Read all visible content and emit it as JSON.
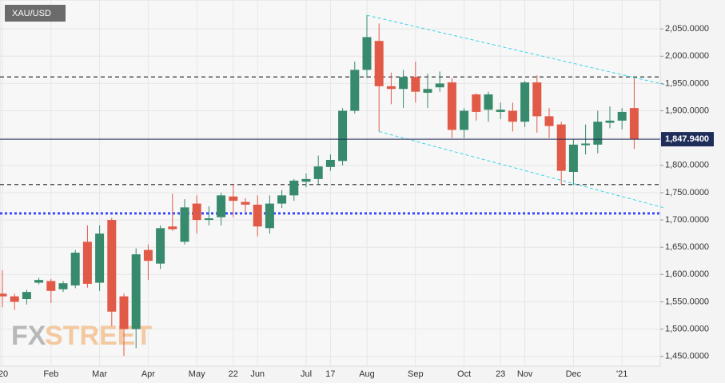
{
  "chart_data": {
    "type": "candlestick",
    "title": "XAU/USD",
    "watermark": [
      "FX",
      "STREET"
    ],
    "categories": [
      "'20",
      null,
      null,
      null,
      "Feb",
      null,
      null,
      null,
      "Mar",
      null,
      null,
      null,
      "Apr",
      null,
      null,
      null,
      "May",
      null,
      null,
      "22",
      null,
      "Jun",
      null,
      null,
      null,
      "Jul",
      null,
      "17",
      null,
      null,
      "Aug",
      null,
      null,
      null,
      "Sep",
      null,
      null,
      null,
      "Oct",
      null,
      null,
      "23",
      null,
      "Nov",
      null,
      null,
      null,
      "Dec",
      null,
      null,
      null,
      "'21",
      null
    ],
    "open": [
      1565,
      1560,
      1555,
      1585,
      1588,
      1573,
      1580,
      1660,
      1585,
      1700,
      1560,
      1500,
      1645,
      1620,
      1688,
      1660,
      1730,
      1700,
      1705,
      1743,
      1733,
      1728,
      1685,
      1730,
      1745,
      1770,
      1775,
      1797,
      1808,
      1900,
      1975,
      2028,
      1945,
      1940,
      1962,
      1933,
      1943,
      1952,
      1865,
      1930,
      1902,
      1898,
      1900,
      1880,
      1952,
      1890,
      1875,
      1788,
      1837,
      1838,
      1878,
      1882,
      1905
    ],
    "high": [
      1608,
      1565,
      1572,
      1594,
      1592,
      1588,
      1645,
      1690,
      1690,
      1704,
      1565,
      1648,
      1655,
      1690,
      1748,
      1738,
      1745,
      1725,
      1750,
      1765,
      1740,
      1745,
      1745,
      1755,
      1775,
      1785,
      1818,
      1820,
      1905,
      1990,
      2075,
      2060,
      1970,
      1975,
      1990,
      1968,
      1972,
      1960,
      1905,
      1932,
      1935,
      1915,
      1915,
      1955,
      1965,
      1905,
      1880,
      1848,
      1875,
      1900,
      1908,
      1905,
      1960
    ],
    "low": [
      1540,
      1535,
      1545,
      1582,
      1548,
      1568,
      1575,
      1576,
      1570,
      1505,
      1451,
      1465,
      1590,
      1610,
      1680,
      1655,
      1675,
      1690,
      1690,
      1705,
      1715,
      1670,
      1675,
      1722,
      1735,
      1760,
      1765,
      1790,
      1800,
      1895,
      1960,
      1862,
      1912,
      1905,
      1915,
      1905,
      1935,
      1850,
      1850,
      1882,
      1880,
      1885,
      1862,
      1870,
      1860,
      1850,
      1765,
      1764,
      1820,
      1822,
      1868,
      1866,
      1830
    ],
    "close": [
      1560,
      1550,
      1568,
      1590,
      1570,
      1584,
      1640,
      1583,
      1675,
      1532,
      1500,
      1637,
      1625,
      1685,
      1683,
      1723,
      1700,
      1703,
      1745,
      1735,
      1728,
      1688,
      1730,
      1745,
      1772,
      1775,
      1798,
      1810,
      1900,
      1975,
      2035,
      1945,
      1940,
      1962,
      1935,
      1940,
      1950,
      1865,
      1900,
      1898,
      1930,
      1902,
      1880,
      1952,
      1890,
      1872,
      1790,
      1838,
      1840,
      1880,
      1882,
      1898,
      1847.94
    ],
    "up_color": "#378a6c",
    "down_color": "#e05a47",
    "ylim": [
      1432,
      2103
    ],
    "yticks": [
      {
        "value": 1450,
        "label": "1,450.0000"
      },
      {
        "value": 1500,
        "label": "1,500.0000"
      },
      {
        "value": 1550,
        "label": "1,550.0000"
      },
      {
        "value": 1600,
        "label": "1,600.0000"
      },
      {
        "value": 1650,
        "label": "1,650.0000"
      },
      {
        "value": 1700,
        "label": "1,700.0000"
      },
      {
        "value": 1750,
        "label": "1,750.0000"
      },
      {
        "value": 1800,
        "label": "1,800.0000"
      },
      {
        "value": 1850,
        "label": "1,850.0000"
      },
      {
        "value": 1900,
        "label": "1,900.0000"
      },
      {
        "value": 1950,
        "label": "1,950.0000"
      },
      {
        "value": 2000,
        "label": "2,000.0000"
      },
      {
        "value": 2050,
        "label": "2,050.0000"
      }
    ],
    "grid": true,
    "hlines": [
      {
        "value": 1962,
        "color": "#555555",
        "style": "dashed"
      },
      {
        "value": 1765,
        "color": "#555555",
        "style": "dashed"
      },
      {
        "value": 1712,
        "color": "#3b4bff",
        "style": "dotted"
      }
    ],
    "trendlines": [
      {
        "x": [
          30,
          54.5
        ],
        "values": [
          2075,
          1948
        ],
        "color": "#33d6e6"
      },
      {
        "x": [
          31,
          54.5
        ],
        "values": [
          1862,
          1722
        ],
        "color": "#33d6e6"
      }
    ],
    "price_line": {
      "value": 1847.94,
      "label": "1,847.9400",
      "color": "#1f2d5a"
    }
  }
}
